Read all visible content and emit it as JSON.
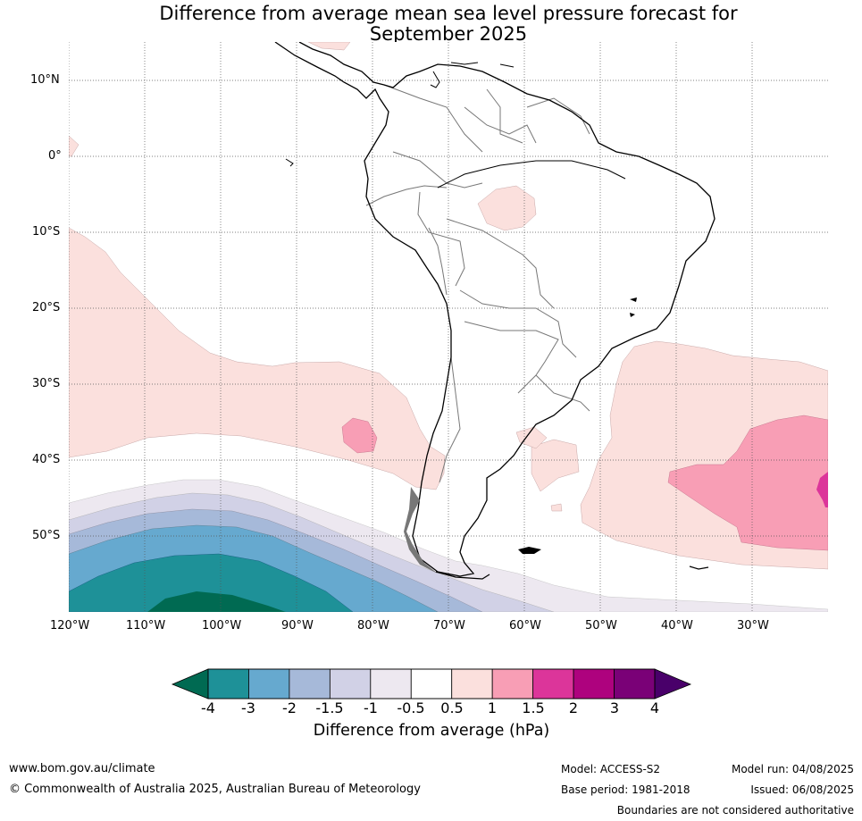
{
  "title": {
    "line1": "Difference from average mean sea level pressure forecast for",
    "line2": "September 2025"
  },
  "map": {
    "lat_labels": [
      "10°N",
      "0°",
      "10°S",
      "20°S",
      "30°S",
      "40°S",
      "50°S"
    ],
    "lon_labels": [
      "120°W",
      "110°W",
      "100°W",
      "90°W",
      "80°W",
      "70°W",
      "60°W",
      "50°W",
      "40°W",
      "30°W"
    ]
  },
  "colorbar": {
    "label": "Difference from average (hPa)",
    "ticks": [
      "-4",
      "-3",
      "-2",
      "-1.5",
      "-1",
      "-0.5",
      "0.5",
      "1",
      "1.5",
      "2",
      "3",
      "4"
    ],
    "colors": [
      "#1e9198",
      "#66a9cf",
      "#a6b9d9",
      "#d1d1e6",
      "#ede8f0",
      "#ffffff",
      "#fbe0dd",
      "#f89eb5",
      "#dc359a",
      "#ae027e",
      "#7a0177"
    ],
    "under_color": "#006a52",
    "over_color": "#49006a"
  },
  "footer": {
    "url": "www.bom.gov.au/climate",
    "copyright": "© Commonwealth of Australia 2025, Australian Bureau of Meteorology",
    "model": "Model: ACCESS-S2",
    "base_period": "Base period: 1981-2018",
    "model_run": "Model run: 04/08/2025",
    "issued": "Issued: 06/08/2025",
    "disclaimer": "Boundaries are not considered authoritative"
  }
}
